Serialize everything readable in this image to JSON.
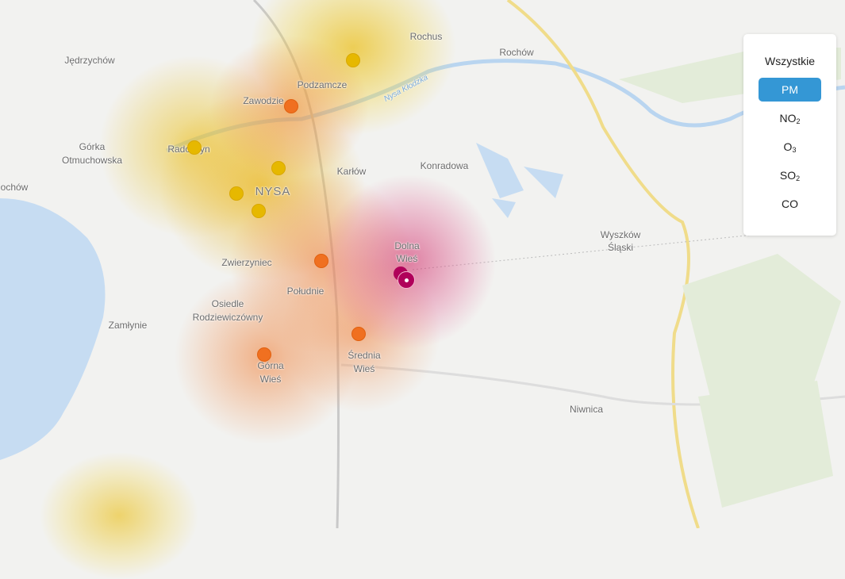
{
  "filter_panel": {
    "options": [
      {
        "label": "Wszystkie",
        "sub": ""
      },
      {
        "label": "PM",
        "sub": "",
        "active": true
      },
      {
        "label": "NO",
        "sub": "2"
      },
      {
        "label": "O",
        "sub": "3"
      },
      {
        "label": "SO",
        "sub": "2"
      },
      {
        "label": "CO",
        "sub": ""
      }
    ],
    "active_color": "#3497d5"
  },
  "map": {
    "labels": {
      "rochus": "Rochus",
      "rochow": "Rochów",
      "jedrzychow": "Jędrzychów",
      "podzamcze": "Podzamcze",
      "zawodzie": "Zawodzie",
      "nysa_klodzka": "Nysa Kłodzka",
      "gorka1": "Górka",
      "gorka2": "Otmuchowska",
      "radoszyn": "Radoszyn",
      "karlow": "Karłów",
      "konradowa": "Konradowa",
      "rochow_left": "ochów",
      "nysa": "NYSA",
      "dolna1": "Dolna",
      "dolna2": "Wieś",
      "wyszkow1": "Wyszków",
      "wyszkow2": "Śląski",
      "zwierzyniec": "Zwierzyniec",
      "poludnie": "Południe",
      "osiedle1": "Osiedle",
      "osiedle2": "Rodziewiczówny",
      "zamlynie": "Zamłynie",
      "srednia1": "Średnia",
      "srednia2": "Wieś",
      "gorna1": "Górna",
      "gorna2": "Wieś",
      "niwnica": "Niwnica"
    },
    "level_colors": {
      "moderate": "#e6b800",
      "poor": "#f07020",
      "very_poor": "#b0005a"
    }
  }
}
